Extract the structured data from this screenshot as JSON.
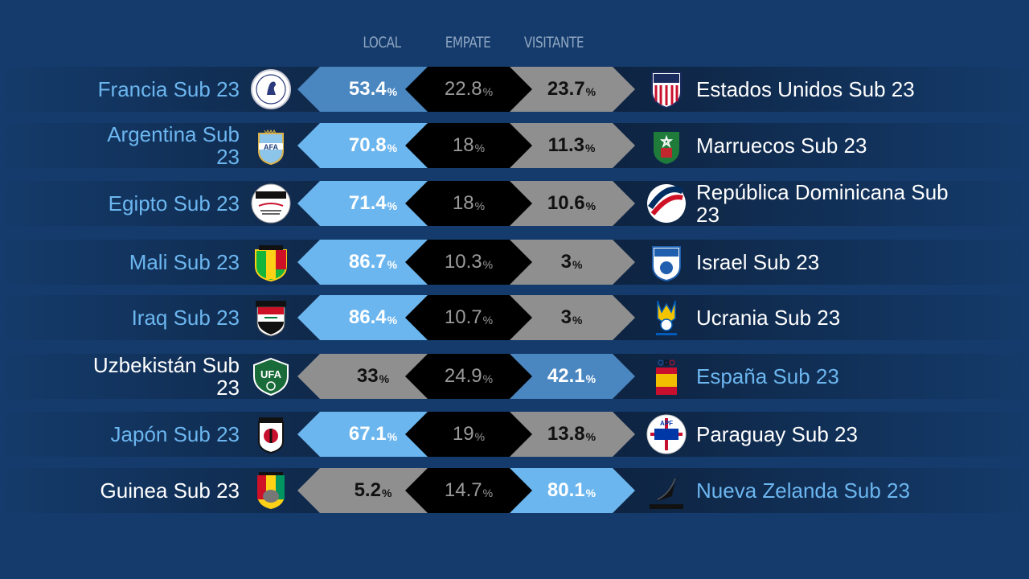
{
  "headers": {
    "local": "LOCAL",
    "empate": "EMPATE",
    "visitante": "VISITANTE"
  },
  "colors": {
    "background": "#143b6b",
    "highlight": "#6cb6ef",
    "mid": "#4a86c0",
    "neutral": "#8f8f8f",
    "draw": "#000000"
  },
  "percent_sign": "%",
  "matches": [
    {
      "home": "Francia Sub 23",
      "away": "Estados Unidos Sub 23",
      "local": "53.4",
      "draw": "22.8",
      "visit": "23.7",
      "favorite": "home",
      "home_crest": "france-crest-icon",
      "away_crest": "usa-crest-icon"
    },
    {
      "home": "Argentina Sub 23",
      "away": "Marruecos Sub 23",
      "local": "70.8",
      "draw": "18",
      "visit": "11.3",
      "favorite": "home",
      "home_crest": "argentina-crest-icon",
      "away_crest": "morocco-crest-icon"
    },
    {
      "home": "Egipto Sub 23",
      "away": "República Dominicana Sub 23",
      "local": "71.4",
      "draw": "18",
      "visit": "10.6",
      "favorite": "home",
      "home_crest": "egypt-crest-icon",
      "away_crest": "dominican-republic-crest-icon"
    },
    {
      "home": "Mali Sub 23",
      "away": "Israel Sub 23",
      "local": "86.7",
      "draw": "10.3",
      "visit": "3",
      "favorite": "home",
      "home_crest": "mali-crest-icon",
      "away_crest": "israel-crest-icon"
    },
    {
      "home": "Iraq Sub 23",
      "away": "Ucrania Sub 23",
      "local": "86.4",
      "draw": "10.7",
      "visit": "3",
      "favorite": "home",
      "home_crest": "iraq-crest-icon",
      "away_crest": "ukraine-crest-icon"
    },
    {
      "home": "Uzbekistán Sub 23",
      "away": "España Sub 23",
      "local": "33",
      "draw": "24.9",
      "visit": "42.1",
      "favorite": "away",
      "home_crest": "uzbekistan-crest-icon",
      "away_crest": "spain-crest-icon"
    },
    {
      "home": "Japón Sub 23",
      "away": "Paraguay Sub 23",
      "local": "67.1",
      "draw": "19",
      "visit": "13.8",
      "favorite": "home",
      "home_crest": "japan-crest-icon",
      "away_crest": "paraguay-crest-icon"
    },
    {
      "home": "Guinea Sub 23",
      "away": "Nueva Zelanda Sub 23",
      "local": "5.2",
      "draw": "14.7",
      "visit": "80.1",
      "favorite": "away",
      "home_crest": "guinea-crest-icon",
      "away_crest": "new-zealand-crest-icon"
    }
  ]
}
